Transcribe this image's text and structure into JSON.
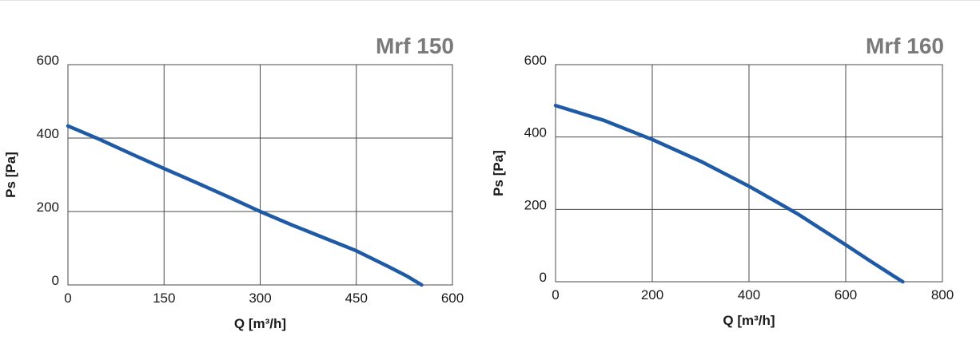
{
  "colors": {
    "curve": "#1f5aa6",
    "title": "#7a7a7a",
    "grid": "#4a4a4a"
  },
  "chart_data": [
    {
      "type": "line",
      "title": "Mrf 150",
      "xlabel": "Q [m³/h]",
      "ylabel": "Ps [Pa]",
      "xlim": [
        0,
        600
      ],
      "ylim": [
        0,
        600
      ],
      "x_ticks": [
        "0",
        "150",
        "300",
        "450",
        "600"
      ],
      "y_ticks": [
        "0",
        "200",
        "400",
        "600"
      ],
      "grid": true,
      "series": [
        {
          "x": [
            0,
            50,
            100,
            150,
            200,
            250,
            300,
            350,
            400,
            450,
            500,
            530,
            552
          ],
          "y": [
            433,
            396,
            356,
            317,
            279,
            240,
            200,
            163,
            128,
            93,
            50,
            23,
            0
          ]
        }
      ]
    },
    {
      "type": "line",
      "title": "Mrf 160",
      "xlabel": "Q [m³/h]",
      "ylabel": "Ps [Pa]",
      "xlim": [
        0,
        800
      ],
      "ylim": [
        0,
        600
      ],
      "x_ticks": [
        "0",
        "200",
        "400",
        "600",
        "800"
      ],
      "y_ticks": [
        "0",
        "200",
        "400",
        "600"
      ],
      "grid": true,
      "series": [
        {
          "x": [
            0,
            100,
            200,
            300,
            400,
            500,
            600,
            650,
            700,
            718
          ],
          "y": [
            487,
            446,
            393,
            333,
            264,
            188,
            102,
            58,
            15,
            0
          ]
        }
      ]
    }
  ]
}
